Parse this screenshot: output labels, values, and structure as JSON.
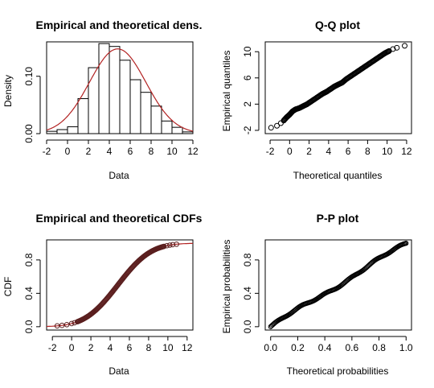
{
  "chart_data": [
    {
      "id": "density",
      "type": "histogram",
      "title": "Empirical and theoretical dens.",
      "xlabel": "Data",
      "ylabel": "Density",
      "xlim": [
        -2,
        12
      ],
      "ylim": [
        0,
        0.16
      ],
      "xticks": [
        -2,
        0,
        2,
        4,
        6,
        8,
        10,
        12
      ],
      "xtick_labels": [
        "-2",
        "0",
        "2",
        "4",
        "6",
        "8",
        "10",
        "12"
      ],
      "yticks": [
        0,
        0.1
      ],
      "ytick_labels": [
        "0.00",
        "0.10"
      ],
      "bin_edges": [
        -2,
        -1,
        0,
        1,
        2,
        3,
        4,
        5,
        6,
        7,
        8,
        9,
        10,
        11,
        12
      ],
      "values": [
        0.004,
        0.007,
        0.012,
        0.061,
        0.115,
        0.157,
        0.152,
        0.128,
        0.094,
        0.072,
        0.048,
        0.022,
        0.011,
        0.003
      ],
      "curve": {
        "type": "normal",
        "mean": 4.8,
        "sd": 2.7,
        "color": "#b22222"
      },
      "bar_color": "#ffffff"
    },
    {
      "id": "qq",
      "type": "scatter",
      "title": "Q-Q plot",
      "xlabel": "Theoretical quantiles",
      "ylabel": "Empirical quantiles",
      "xlim": [
        -2.5,
        12.5
      ],
      "ylim": [
        -2.5,
        11.5
      ],
      "xticks": [
        -2,
        0,
        2,
        4,
        6,
        8,
        10,
        12
      ],
      "xtick_labels": [
        "-2",
        "0",
        "2",
        "4",
        "6",
        "8",
        "10",
        "12"
      ],
      "yticks": [
        -2,
        2,
        6,
        10
      ],
      "ytick_labels": [
        "-2",
        "2",
        "6",
        "10"
      ],
      "x": [
        -1.9,
        -1.3,
        -0.9,
        -0.6,
        -0.3,
        0.0,
        0.3,
        0.6,
        1.0,
        1.4,
        1.8,
        2.2,
        2.6,
        3.0,
        3.4,
        3.8,
        4.2,
        4.6,
        5.0,
        5.4,
        5.8,
        6.2,
        6.6,
        7.0,
        7.4,
        7.8,
        8.2,
        8.6,
        9.0,
        9.4,
        9.8,
        10.2,
        10.6,
        11.0,
        11.8
      ],
      "y": [
        -1.6,
        -1.3,
        -0.9,
        -0.5,
        0.0,
        0.4,
        0.9,
        1.2,
        1.4,
        1.7,
        2.0,
        2.4,
        2.8,
        3.2,
        3.6,
        3.9,
        4.3,
        4.7,
        5.0,
        5.3,
        5.8,
        6.2,
        6.6,
        7.0,
        7.4,
        7.8,
        8.2,
        8.6,
        9.0,
        9.4,
        9.8,
        10.1,
        10.4,
        10.6,
        10.9
      ]
    },
    {
      "id": "cdf",
      "type": "line",
      "title": "Empirical and theoretical CDFs",
      "xlabel": "Data",
      "ylabel": "CDF",
      "xlim": [
        -2,
        12
      ],
      "ylim": [
        0,
        1
      ],
      "xticks": [
        -2,
        0,
        2,
        4,
        6,
        8,
        10,
        12
      ],
      "xtick_labels": [
        "-2",
        "0",
        "2",
        "4",
        "6",
        "8",
        "10",
        "12"
      ],
      "yticks": [
        0,
        0.4,
        0.8
      ],
      "ytick_labels": [
        "0.0",
        "0.4",
        "0.8"
      ],
      "curve": {
        "type": "normal_cdf",
        "mean": 4.8,
        "sd": 2.7,
        "color": "#b22222"
      },
      "points_x": [
        -1.5,
        -1.0,
        -0.5,
        0.0,
        0.3,
        0.6,
        0.9,
        1.2,
        1.5,
        1.8,
        2.1,
        2.4,
        2.7,
        3.0,
        3.3,
        3.6,
        3.9,
        4.2,
        4.5,
        4.8,
        5.1,
        5.4,
        5.7,
        6.0,
        6.3,
        6.6,
        6.9,
        7.2,
        7.5,
        7.8,
        8.1,
        8.4,
        8.7,
        9.0,
        9.3,
        9.6,
        9.9,
        10.2,
        10.5,
        10.9
      ]
    },
    {
      "id": "pp",
      "type": "scatter",
      "title": "P-P plot",
      "xlabel": "Theoretical probabilities",
      "ylabel": "Empirical probabilities",
      "xlim": [
        0,
        1
      ],
      "ylim": [
        0,
        1
      ],
      "xticks": [
        0,
        0.2,
        0.4,
        0.6,
        0.8,
        1.0
      ],
      "xtick_labels": [
        "0.0",
        "0.2",
        "0.4",
        "0.6",
        "0.8",
        "1.0"
      ],
      "yticks": [
        0,
        0.4,
        0.8
      ],
      "ytick_labels": [
        "0.0",
        "0.4",
        "0.8"
      ],
      "n_points": 140
    }
  ]
}
